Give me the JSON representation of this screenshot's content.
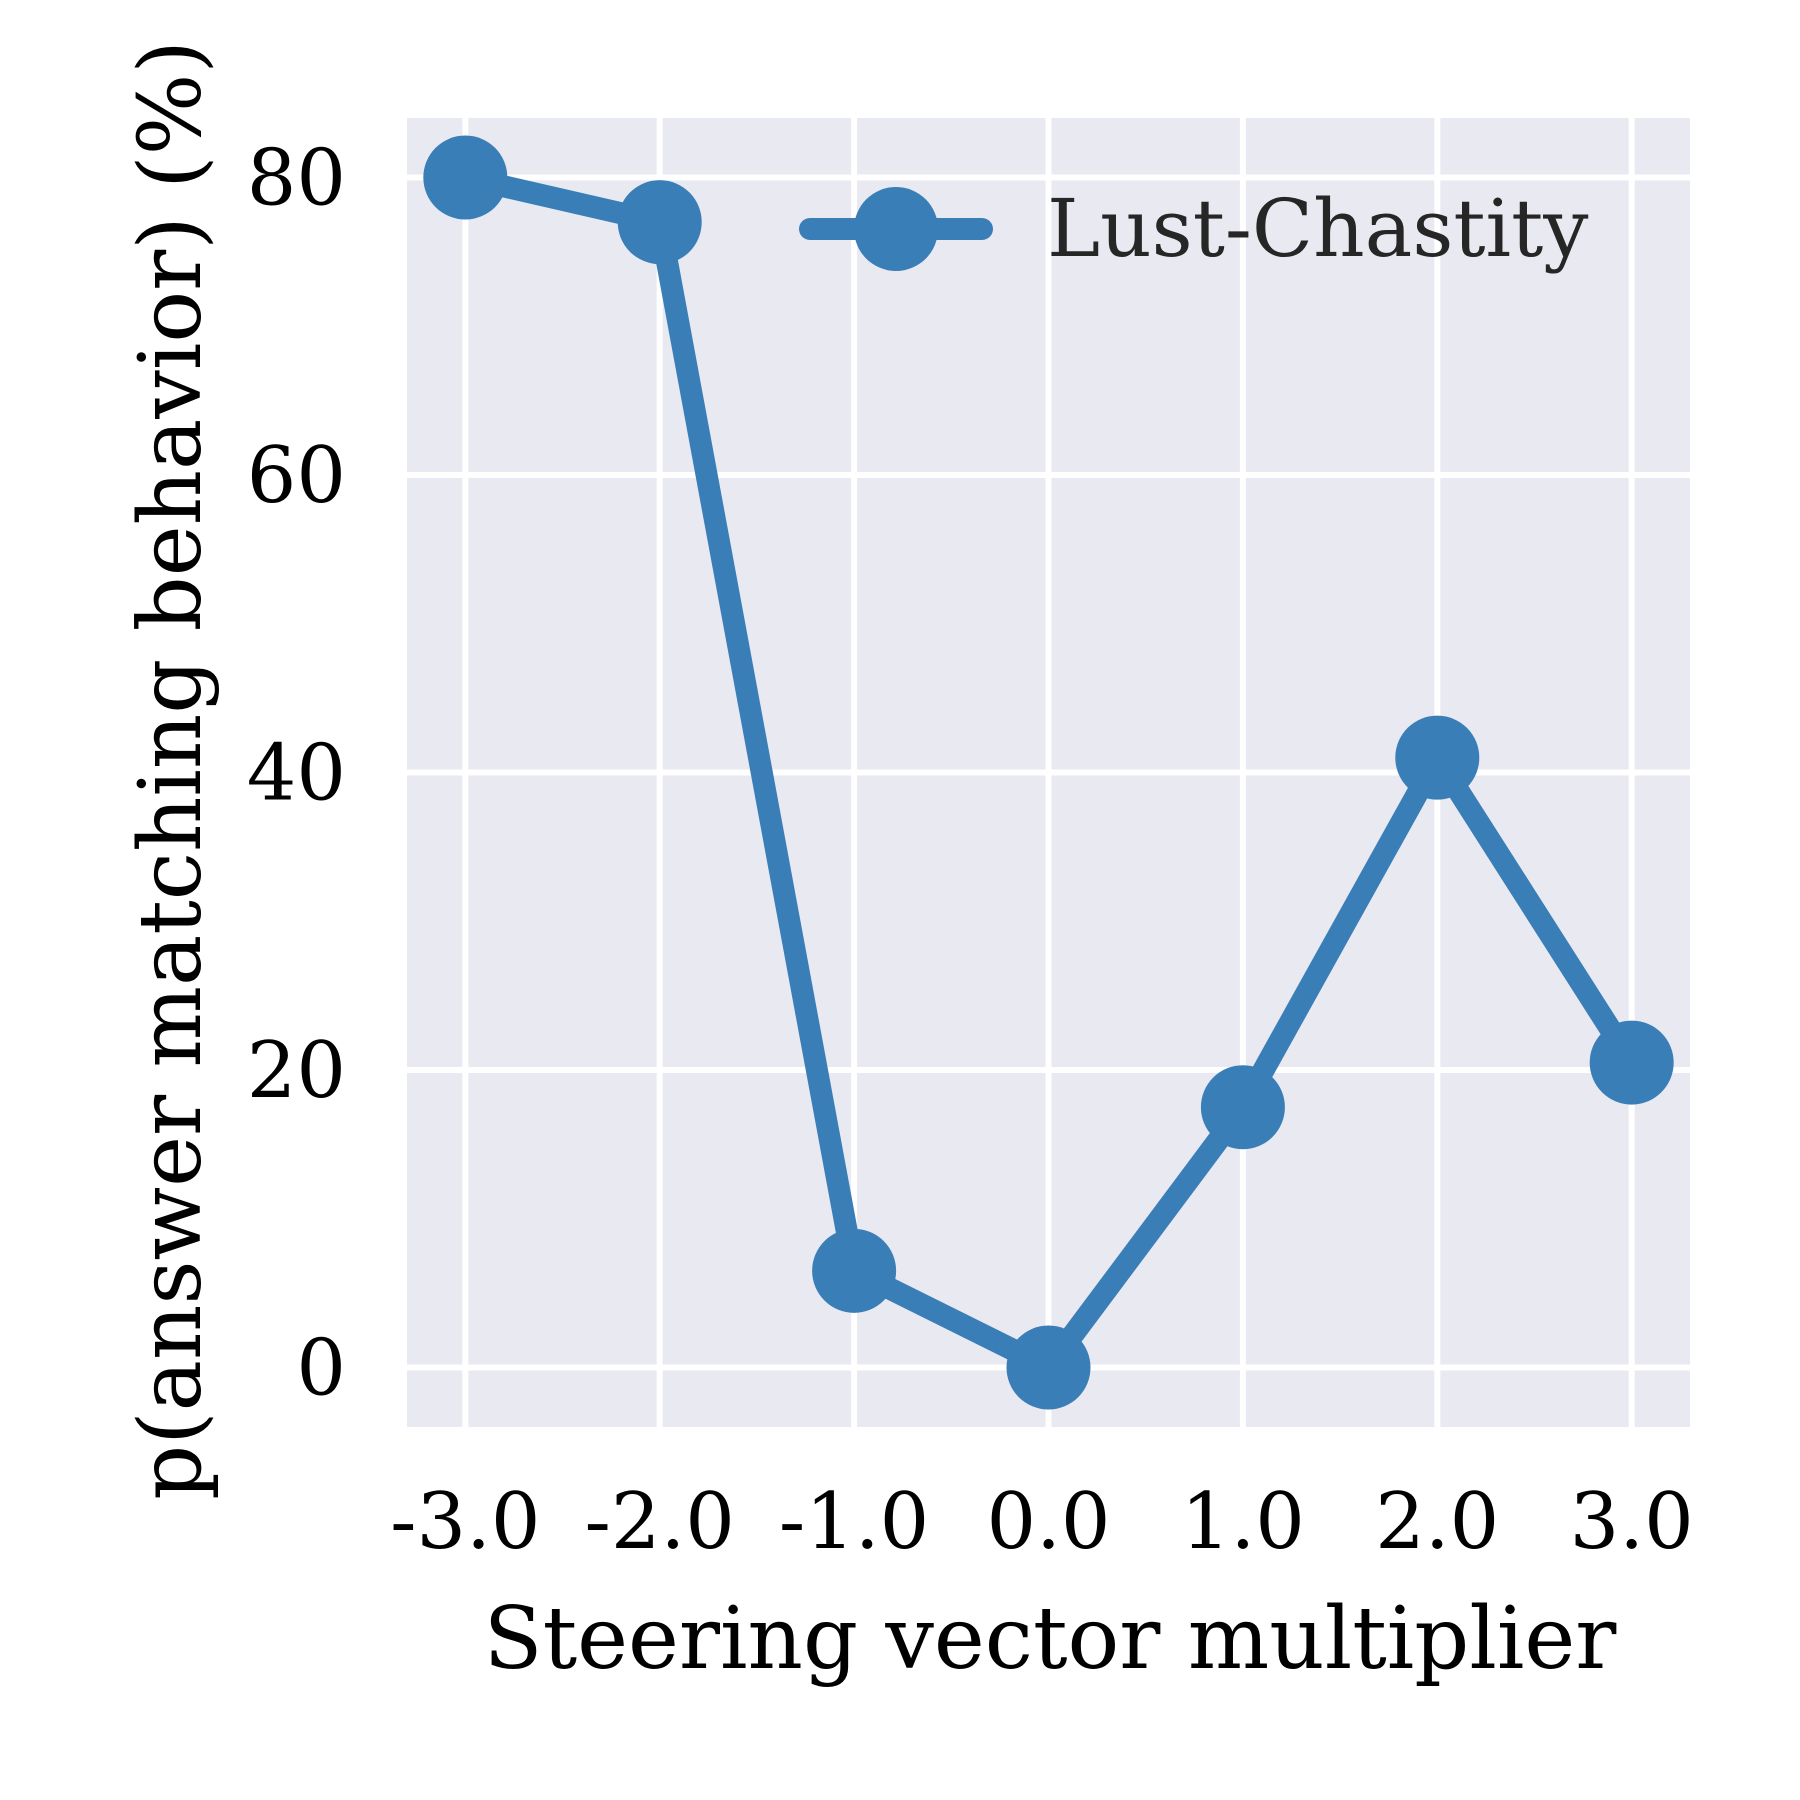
{
  "chart_data": {
    "type": "line",
    "title": "",
    "xlabel": "Steering vector multiplier",
    "ylabel": "p(answer matching behavior) (%)",
    "x": [
      -3.0,
      -2.0,
      -1.0,
      0.0,
      1.0,
      2.0,
      3.0
    ],
    "x_tick_labels": [
      "-3.0",
      "-2.0",
      "-1.0",
      "0.0",
      "1.0",
      "2.0",
      "3.0"
    ],
    "y_ticks": [
      0,
      20,
      40,
      60,
      80
    ],
    "y_tick_labels": [
      "0",
      "20",
      "40",
      "60",
      "80"
    ],
    "xlim": [
      -3.3,
      3.3
    ],
    "ylim": [
      -4,
      84
    ],
    "grid": true,
    "legend_position": "top-right",
    "series": [
      {
        "name": "Lust-Chastity",
        "color": "#3a7eb8",
        "values": [
          80.0,
          77.0,
          6.5,
          0.0,
          17.5,
          41.0,
          20.5
        ]
      }
    ]
  }
}
